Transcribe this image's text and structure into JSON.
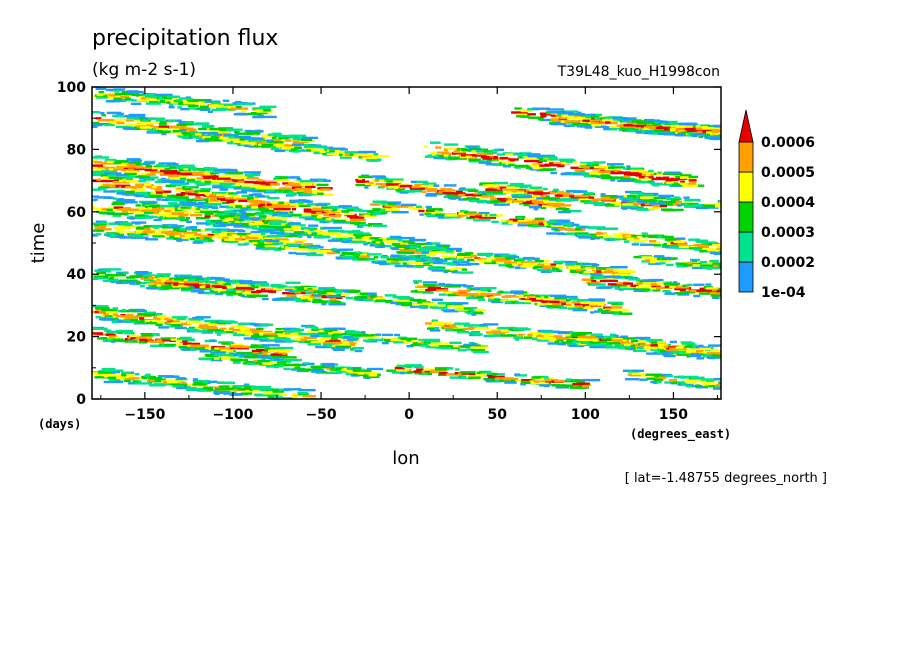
{
  "chart_data": {
    "type": "heatmap",
    "title": "precipitation flux",
    "units": "(kg m-2 s-1)",
    "run_label": "T39L48_kuo_H1998con",
    "xlabel": "lon",
    "ylabel": "time",
    "x_unit_label": "(degrees_east)",
    "y_unit_label": "(days)",
    "xlim": [
      -180,
      177
    ],
    "ylim": [
      0,
      100
    ],
    "x_ticks": [
      -150,
      -100,
      -50,
      0,
      50,
      100,
      150
    ],
    "y_ticks": [
      0,
      20,
      40,
      60,
      80,
      100
    ],
    "slice_note": "[ lat=-1.48755 degrees_north ]",
    "grid": false,
    "legend_position": "right",
    "levels": [
      "1e-04",
      "0.0002",
      "0.0003",
      "0.0004",
      "0.0005",
      "0.0006"
    ],
    "colors": [
      "#1e9bff",
      "#00e38c",
      "#00d200",
      "#ffff00",
      "#ffa000",
      "#e60000"
    ],
    "bands": [
      {
        "lon0": -180,
        "t0": 98,
        "slope": -0.06,
        "length": 100,
        "width": 4,
        "peak": 3
      },
      {
        "lon0": -180,
        "t0": 90,
        "slope": -0.07,
        "length": 120,
        "width": 5,
        "peak": 4
      },
      {
        "lon0": -180,
        "t0": 75,
        "slope": -0.06,
        "length": 130,
        "width": 6,
        "peak": 5
      },
      {
        "lon0": -180,
        "t0": 70,
        "slope": -0.08,
        "length": 160,
        "width": 6,
        "peak": 5
      },
      {
        "lon0": -180,
        "t0": 62,
        "slope": -0.05,
        "length": 110,
        "width": 6,
        "peak": 4
      },
      {
        "lon0": -180,
        "t0": 55,
        "slope": -0.04,
        "length": 120,
        "width": 5,
        "peak": 4
      },
      {
        "lon0": -180,
        "t0": 40,
        "slope": -0.05,
        "length": 90,
        "width": 4,
        "peak": 3
      },
      {
        "lon0": -150,
        "t0": 38,
        "slope": -0.05,
        "length": 110,
        "width": 5,
        "peak": 5
      },
      {
        "lon0": -180,
        "t0": 28,
        "slope": -0.07,
        "length": 150,
        "width": 5,
        "peak": 4
      },
      {
        "lon0": -180,
        "t0": 21,
        "slope": -0.06,
        "length": 110,
        "width": 4,
        "peak": 5
      },
      {
        "lon0": -180,
        "t0": 8,
        "slope": -0.06,
        "length": 120,
        "width": 4,
        "peak": 3
      },
      {
        "lon0": -110,
        "t0": 58,
        "slope": -0.08,
        "length": 130,
        "width": 4,
        "peak": 3
      },
      {
        "lon0": -90,
        "t0": 50,
        "slope": -0.07,
        "length": 120,
        "width": 3,
        "peak": 3
      },
      {
        "lon0": -70,
        "t0": 36,
        "slope": -0.07,
        "length": 110,
        "width": 3,
        "peak": 3
      },
      {
        "lon0": -60,
        "t0": 22,
        "slope": -0.06,
        "length": 100,
        "width": 3,
        "peak": 3
      },
      {
        "lon0": -30,
        "t0": 70,
        "slope": -0.07,
        "length": 120,
        "width": 4,
        "peak": 5
      },
      {
        "lon0": -20,
        "t0": 62,
        "slope": -0.06,
        "length": 110,
        "width": 3,
        "peak": 5
      },
      {
        "lon0": -10,
        "t0": 48,
        "slope": -0.06,
        "length": 130,
        "width": 4,
        "peak": 4
      },
      {
        "lon0": 0,
        "t0": 36,
        "slope": -0.06,
        "length": 120,
        "width": 4,
        "peak": 5
      },
      {
        "lon0": 10,
        "t0": 80,
        "slope": -0.07,
        "length": 150,
        "width": 5,
        "peak": 5
      },
      {
        "lon0": 10,
        "t0": 24,
        "slope": -0.06,
        "length": 160,
        "width": 4,
        "peak": 4
      },
      {
        "lon0": -10,
        "t0": 10,
        "slope": -0.05,
        "length": 110,
        "width": 3,
        "peak": 5
      },
      {
        "lon0": 40,
        "t0": 68,
        "slope": -0.06,
        "length": 110,
        "width": 4,
        "peak": 5
      },
      {
        "lon0": 60,
        "t0": 92,
        "slope": -0.06,
        "length": 120,
        "width": 4,
        "peak": 5
      },
      {
        "lon0": 80,
        "t0": 90,
        "slope": -0.05,
        "length": 100,
        "width": 4,
        "peak": 5
      },
      {
        "lon0": 80,
        "t0": 55,
        "slope": -0.07,
        "length": 100,
        "width": 4,
        "peak": 4
      },
      {
        "lon0": 100,
        "t0": 38,
        "slope": -0.05,
        "length": 77,
        "width": 4,
        "peak": 5
      },
      {
        "lon0": 90,
        "t0": 20,
        "slope": -0.06,
        "length": 87,
        "width": 4,
        "peak": 4
      },
      {
        "lon0": 120,
        "t0": 88,
        "slope": -0.04,
        "length": 57,
        "width": 4,
        "peak": 5
      },
      {
        "lon0": 120,
        "t0": 65,
        "slope": -0.05,
        "length": 57,
        "width": 3,
        "peak": 3
      },
      {
        "lon0": 130,
        "t0": 45,
        "slope": -0.05,
        "length": 47,
        "width": 3,
        "peak": 3
      },
      {
        "lon0": 120,
        "t0": 8,
        "slope": -0.06,
        "length": 57,
        "width": 3,
        "peak": 4
      },
      {
        "lon0": -130,
        "t0": 85,
        "slope": -0.07,
        "length": 110,
        "width": 3,
        "peak": 3
      },
      {
        "lon0": -120,
        "t0": 14,
        "slope": -0.06,
        "length": 100,
        "width": 3,
        "peak": 3
      }
    ]
  }
}
